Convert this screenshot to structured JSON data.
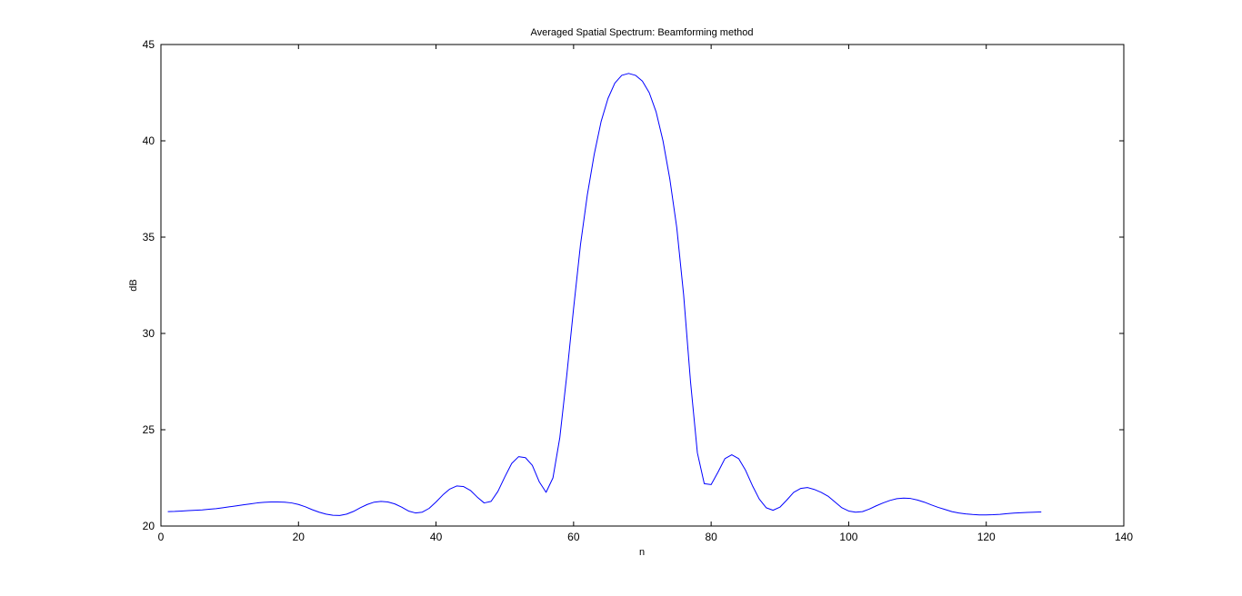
{
  "chart_data": {
    "type": "line",
    "title": "Averaged Spatial Spectrum: Beamforming method",
    "xlabel": "n",
    "ylabel": "dB",
    "xlim": [
      0,
      140
    ],
    "ylim": [
      20,
      45
    ],
    "grid": false,
    "legend": "none",
    "x_ticks": [
      0,
      20,
      40,
      60,
      80,
      100,
      120,
      140
    ],
    "y_ticks": [
      20,
      25,
      30,
      35,
      40,
      45
    ],
    "x_tick_labels": [
      "0",
      "20",
      "40",
      "60",
      "80",
      "100",
      "120",
      "140"
    ],
    "y_tick_labels": [
      "20",
      "25",
      "30",
      "35",
      "40",
      "45"
    ],
    "line_color": "#0000ff",
    "series": [
      {
        "x": [
          1,
          2,
          3,
          4,
          5,
          6,
          7,
          8,
          9,
          10,
          11,
          12,
          13,
          14,
          15,
          16,
          17,
          18,
          19,
          20,
          21,
          22,
          23,
          24,
          25,
          26,
          27,
          28,
          29,
          30,
          31,
          32,
          33,
          34,
          35,
          36,
          37,
          38,
          39,
          40,
          41,
          42,
          43,
          44,
          45,
          46,
          47,
          48,
          49,
          50,
          51,
          52,
          53,
          54,
          55,
          56,
          57,
          58,
          59,
          60,
          61,
          62,
          63,
          64,
          65,
          66,
          67,
          68,
          69,
          70,
          71,
          72,
          73,
          74,
          75,
          76,
          77,
          78,
          79,
          80,
          81,
          82,
          83,
          84,
          85,
          86,
          87,
          88,
          89,
          90,
          91,
          92,
          93,
          94,
          95,
          96,
          97,
          98,
          99,
          100,
          101,
          102,
          103,
          104,
          105,
          106,
          107,
          108,
          109,
          110,
          111,
          112,
          113,
          114,
          115,
          116,
          117,
          118,
          119,
          120,
          121,
          122,
          123,
          124,
          125,
          126,
          127,
          128
        ],
        "values": [
          20.75,
          20.76,
          20.78,
          20.8,
          20.82,
          20.84,
          20.87,
          20.9,
          20.95,
          21.0,
          21.05,
          21.1,
          21.15,
          21.2,
          21.23,
          21.25,
          21.25,
          21.24,
          21.2,
          21.12,
          21.0,
          20.85,
          20.72,
          20.62,
          20.56,
          20.55,
          20.62,
          20.76,
          20.95,
          21.12,
          21.24,
          21.28,
          21.25,
          21.15,
          20.98,
          20.78,
          20.68,
          20.72,
          20.92,
          21.25,
          21.62,
          21.92,
          22.08,
          22.05,
          21.85,
          21.5,
          21.2,
          21.28,
          21.8,
          22.55,
          23.25,
          23.6,
          23.55,
          23.15,
          22.3,
          21.75,
          22.5,
          24.6,
          27.8,
          31.3,
          34.6,
          37.2,
          39.3,
          41.0,
          42.2,
          43.0,
          43.4,
          43.5,
          43.4,
          43.1,
          42.5,
          41.5,
          40.0,
          38.0,
          35.5,
          32.0,
          27.5,
          23.8,
          22.2,
          22.15,
          22.8,
          23.5,
          23.7,
          23.5,
          22.9,
          22.1,
          21.4,
          20.95,
          20.82,
          20.98,
          21.35,
          21.75,
          21.95,
          22.0,
          21.9,
          21.75,
          21.55,
          21.25,
          20.95,
          20.78,
          20.72,
          20.75,
          20.88,
          21.05,
          21.2,
          21.33,
          21.42,
          21.45,
          21.43,
          21.35,
          21.24,
          21.1,
          20.97,
          20.86,
          20.75,
          20.68,
          20.63,
          20.6,
          20.58,
          20.58,
          20.59,
          20.61,
          20.64,
          20.67,
          20.69,
          20.71,
          20.72,
          20.73
        ]
      }
    ]
  }
}
